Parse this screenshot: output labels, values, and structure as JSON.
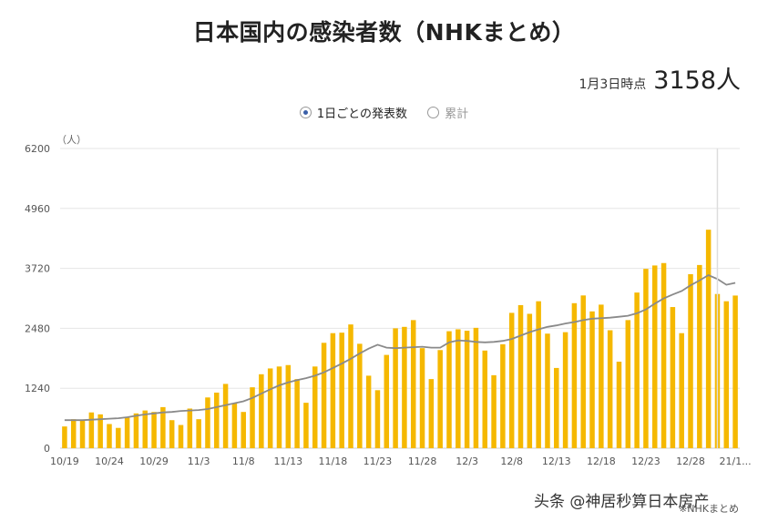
{
  "header": {
    "title": "日本国内の感染者数（NHKまとめ）",
    "latest_label": "1月3日時点",
    "latest_value": "3158人"
  },
  "legend": {
    "option_daily": "1日ごとの発表数",
    "option_cumulative": "累計",
    "selected": "daily"
  },
  "footer": {
    "watermark": "头条 @神居秒算日本房产",
    "source": "※NHKまとめ"
  },
  "colors": {
    "bar": "#f5b800",
    "line": "#8a8a8a",
    "grid": "#e6e6e6",
    "radio_accent": "#3a5fa8"
  },
  "chart_data": {
    "type": "bar",
    "unit_label": "（人）",
    "ylim": [
      0,
      6200
    ],
    "yticks": [
      "0",
      "1240",
      "2480",
      "3720",
      "4960",
      "6200"
    ],
    "x_tick_labels": [
      "10/19",
      "10/24",
      "10/29",
      "11/3",
      "11/8",
      "11/13",
      "11/18",
      "11/23",
      "11/28",
      "12/3",
      "12/8",
      "12/13",
      "12/18",
      "12/23",
      "12/28",
      "21/1..."
    ],
    "x_tick_every": 5,
    "grid": true,
    "series": [
      {
        "type": "bar",
        "values": [
          450,
          600,
          590,
          740,
          700,
          500,
          420,
          630,
          720,
          780,
          750,
          850,
          580,
          480,
          820,
          600,
          1050,
          1150,
          1330,
          930,
          750,
          1260,
          1530,
          1650,
          1690,
          1720,
          1430,
          940,
          1690,
          2180,
          2380,
          2390,
          2560,
          2160,
          1500,
          1200,
          1930,
          2480,
          2510,
          2650,
          2070,
          1430,
          2030,
          2420,
          2460,
          2430,
          2490,
          2020,
          1510,
          2150,
          2800,
          2960,
          2780,
          3040,
          2370,
          1660,
          2400,
          3000,
          3160,
          2830,
          2970,
          2440,
          1790,
          2650,
          3220,
          3710,
          3780,
          3830,
          2920,
          2380,
          3600,
          3790,
          4520,
          3190,
          3040,
          3158
        ]
      },
      {
        "type": "line",
        "values": [
          580,
          580,
          580,
          590,
          600,
          610,
          620,
          640,
          670,
          700,
          720,
          740,
          750,
          770,
          780,
          790,
          810,
          850,
          890,
          930,
          970,
          1040,
          1130,
          1220,
          1300,
          1360,
          1410,
          1450,
          1500,
          1570,
          1660,
          1750,
          1850,
          1960,
          2060,
          2140,
          2080,
          2070,
          2080,
          2090,
          2100,
          2080,
          2080,
          2190,
          2230,
          2220,
          2200,
          2190,
          2200,
          2220,
          2260,
          2330,
          2400,
          2460,
          2510,
          2540,
          2580,
          2610,
          2650,
          2680,
          2690,
          2700,
          2720,
          2740,
          2790,
          2870,
          2990,
          3100,
          3180,
          3250,
          3370,
          3470,
          3580,
          3500,
          3380,
          3420
        ]
      }
    ]
  }
}
